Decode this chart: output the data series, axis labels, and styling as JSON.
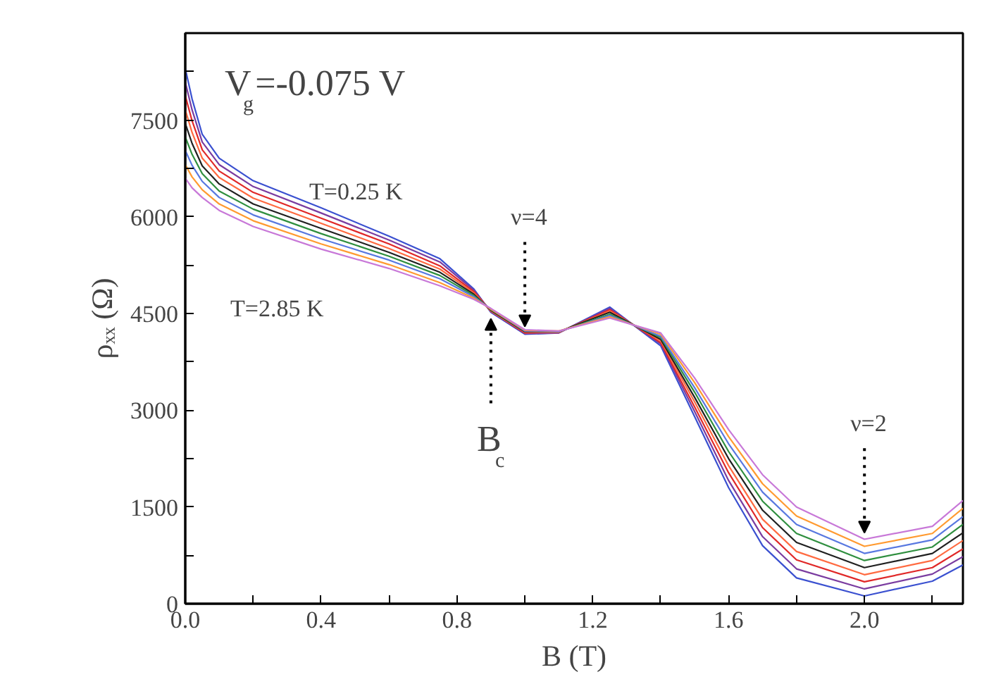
{
  "chart_data": {
    "type": "line",
    "xlabel": "B (T)",
    "ylabel": "ρₓₓ (Ω)",
    "x": [
      0,
      0.02,
      0.05,
      0.1,
      0.2,
      0.4,
      0.6,
      0.75,
      0.85,
      0.9,
      1.0,
      1.1,
      1.25,
      1.4,
      1.5,
      1.6,
      1.7,
      1.8,
      2.0,
      2.2,
      2.29
    ],
    "series": [
      {
        "color": "#3a50d0",
        "values": [
          8300,
          7830,
          7280,
          6910,
          6560,
          6140,
          5700,
          5350,
          4880,
          4520,
          4180,
          4200,
          4600,
          4000,
          2900,
          1800,
          900,
          400,
          120,
          350,
          600
        ]
      },
      {
        "color": "#7a3ca0",
        "values": [
          8090,
          7660,
          7160,
          6810,
          6470,
          6060,
          5640,
          5300,
          4860,
          4530,
          4190,
          4200,
          4580,
          4030,
          2980,
          1910,
          1040,
          540,
          230,
          460,
          730
        ]
      },
      {
        "color": "#e02828",
        "values": [
          7880,
          7490,
          7040,
          6710,
          6380,
          5980,
          5580,
          5240,
          4840,
          4540,
          4200,
          4210,
          4560,
          4050,
          3050,
          2030,
          1180,
          680,
          340,
          560,
          850
        ]
      },
      {
        "color": "#ff6a40",
        "values": [
          7660,
          7310,
          6910,
          6610,
          6290,
          5900,
          5510,
          5190,
          4820,
          4540,
          4210,
          4210,
          4540,
          4080,
          3130,
          2140,
          1310,
          810,
          450,
          670,
          980
        ]
      },
      {
        "color": "#202020",
        "values": [
          7450,
          7140,
          6790,
          6510,
          6200,
          5820,
          5450,
          5140,
          4800,
          4550,
          4220,
          4220,
          4520,
          4100,
          3200,
          2250,
          1450,
          950,
          560,
          780,
          1100
        ]
      },
      {
        "color": "#2f8f3f",
        "values": [
          7240,
          6970,
          6670,
          6400,
          6120,
          5740,
          5390,
          5090,
          4780,
          4560,
          4230,
          4220,
          4490,
          4130,
          3280,
          2360,
          1590,
          1090,
          670,
          880,
          1230
        ]
      },
      {
        "color": "#5878e0",
        "values": [
          7030,
          6800,
          6550,
          6300,
          6030,
          5660,
          5330,
          5040,
          4760,
          4570,
          4230,
          4220,
          4470,
          4150,
          3350,
          2480,
          1730,
          1230,
          780,
          990,
          1350
        ]
      },
      {
        "color": "#ff9a30",
        "values": [
          6810,
          6620,
          6420,
          6200,
          5940,
          5580,
          5260,
          4980,
          4740,
          4570,
          4240,
          4230,
          4450,
          4180,
          3430,
          2590,
          1860,
          1360,
          890,
          1090,
          1480
        ]
      },
      {
        "color": "#c878d8",
        "values": [
          6600,
          6450,
          6300,
          6100,
          5850,
          5500,
          5200,
          4930,
          4720,
          4580,
          4250,
          4230,
          4430,
          4200,
          3500,
          2700,
          2000,
          1500,
          1000,
          1200,
          1600
        ]
      }
    ],
    "xlim": [
      0,
      2.29
    ],
    "ylim": [
      0,
      8850
    ],
    "xticks": [
      {
        "value": 0,
        "label": "0.0"
      },
      {
        "value": 0.2,
        "label": null
      },
      {
        "value": 0.4,
        "label": "0.4"
      },
      {
        "value": 0.6,
        "label": null
      },
      {
        "value": 0.8,
        "label": "0.8"
      },
      {
        "value": 1.0,
        "label": null
      },
      {
        "value": 1.2,
        "label": "1.2"
      },
      {
        "value": 1.4,
        "label": null
      },
      {
        "value": 1.6,
        "label": "1.6"
      },
      {
        "value": 1.8,
        "label": null
      },
      {
        "value": 2.0,
        "label": "2.0"
      },
      {
        "value": 2.2,
        "label": null
      }
    ],
    "yticks": [
      0,
      {
        "value": 750,
        "label": null
      },
      1500,
      {
        "value": 2250,
        "label": null
      },
      3000,
      {
        "value": 3750,
        "label": null
      },
      4500,
      {
        "value": 5250,
        "label": null
      },
      6000,
      {
        "value": 6750,
        "label": null
      },
      7500,
      {
        "value": 8250,
        "label": null
      }
    ],
    "annotations": [
      "V$_{g}$=-0.075 V",
      "T=0.25 K",
      "T=2.85 K",
      {
        "text": "ν=4",
        "x": 1.0,
        "y": 4300
      },
      {
        "text": "B$_{c}$",
        "x": 0.9,
        "y": 4420
      },
      {
        "text": "ν=2",
        "x": 2.0,
        "y": 1100
      }
    ],
    "grid": false,
    "marker": "none",
    "line_style": "solid"
  }
}
